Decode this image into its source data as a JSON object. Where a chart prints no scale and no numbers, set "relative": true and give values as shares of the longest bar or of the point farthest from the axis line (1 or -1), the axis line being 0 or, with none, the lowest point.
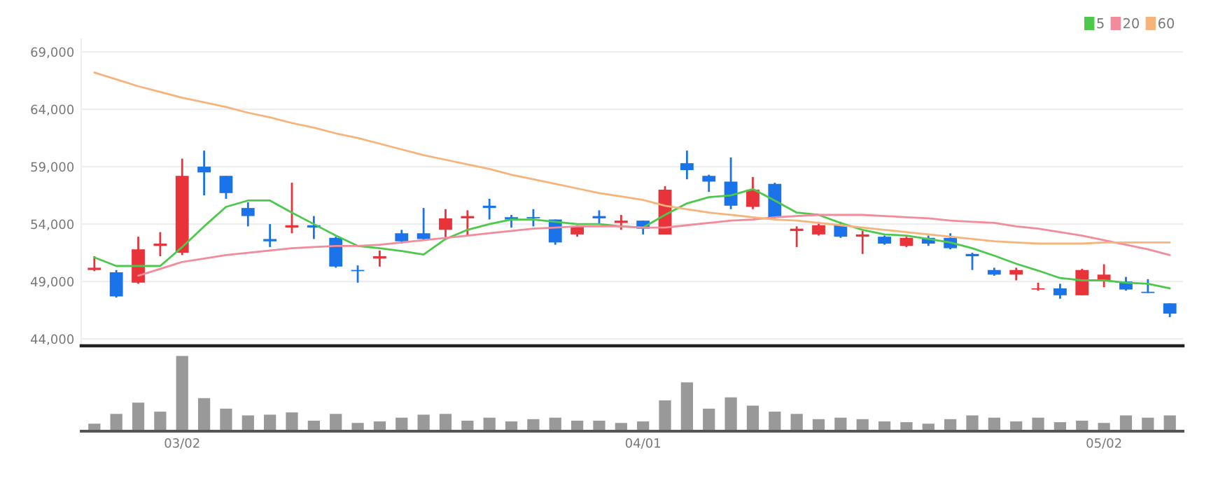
{
  "chart_data": [
    {
      "type": "candlestick",
      "categories": [
        null,
        null,
        null,
        null,
        null,
        null,
        null,
        null,
        null,
        null,
        null,
        null,
        null,
        null,
        null,
        null,
        null,
        null,
        null,
        null,
        null,
        null,
        null,
        null,
        null,
        null,
        null,
        null,
        null,
        null,
        null,
        null,
        null,
        null,
        null,
        null,
        null,
        null,
        null,
        null,
        null,
        null,
        null,
        null,
        null,
        null,
        null,
        null,
        null,
        null
      ],
      "ohlc": [
        [
          50000,
          51200,
          49900,
          50200
        ],
        [
          49800,
          50000,
          47600,
          47700
        ],
        [
          48900,
          52900,
          48800,
          51800
        ],
        [
          52100,
          53300,
          51200,
          52300
        ],
        [
          51500,
          59700,
          51300,
          58200
        ],
        [
          59000,
          60400,
          56500,
          58500
        ],
        [
          58200,
          58200,
          56200,
          56700
        ],
        [
          55400,
          55900,
          53800,
          54700
        ],
        [
          52700,
          54000,
          52000,
          52500
        ],
        [
          53700,
          57600,
          53200,
          53900
        ],
        [
          53900,
          54700,
          52700,
          53700
        ],
        [
          52800,
          52900,
          50200,
          50300
        ],
        [
          50000,
          50400,
          48900,
          49900
        ],
        [
          51000,
          51700,
          50300,
          51200
        ],
        [
          53200,
          53500,
          52300,
          52500
        ],
        [
          53200,
          55400,
          52600,
          52700
        ],
        [
          53500,
          55300,
          52800,
          54500
        ],
        [
          54500,
          55200,
          53000,
          54700
        ],
        [
          55600,
          56200,
          54400,
          55400
        ],
        [
          54600,
          54800,
          53700,
          54400
        ],
        [
          54600,
          55300,
          53800,
          54500
        ],
        [
          54400,
          54400,
          52200,
          52400
        ],
        [
          53100,
          53900,
          52900,
          53800
        ],
        [
          54700,
          55200,
          54000,
          54500
        ],
        [
          54100,
          54800,
          53500,
          54300
        ],
        [
          54300,
          54300,
          53100,
          53600
        ],
        [
          53100,
          57300,
          53100,
          57000
        ],
        [
          59300,
          60400,
          57900,
          58700
        ],
        [
          58200,
          58300,
          56800,
          57700
        ],
        [
          57700,
          59800,
          55300,
          55600
        ],
        [
          55500,
          58100,
          55300,
          57000
        ],
        [
          57500,
          57600,
          54500,
          54600
        ],
        [
          53400,
          53800,
          52000,
          53600
        ],
        [
          53100,
          54200,
          53000,
          53900
        ],
        [
          53900,
          54200,
          52800,
          52900
        ],
        [
          52900,
          53400,
          51400,
          53100
        ],
        [
          52900,
          53000,
          52200,
          52300
        ],
        [
          52100,
          52900,
          52000,
          52800
        ],
        [
          52800,
          53000,
          52100,
          52300
        ],
        [
          52800,
          53200,
          51800,
          51900
        ],
        [
          51400,
          51500,
          50000,
          51200
        ],
        [
          50000,
          50200,
          49500,
          49600
        ],
        [
          49600,
          50200,
          49100,
          50000
        ],
        [
          48300,
          48900,
          48200,
          48400
        ],
        [
          48400,
          48800,
          47500,
          47800
        ],
        [
          47800,
          50100,
          47800,
          50000
        ],
        [
          49100,
          50500,
          48500,
          49600
        ],
        [
          49000,
          49400,
          48200,
          48300
        ],
        [
          48100,
          49200,
          48000,
          48000
        ],
        [
          47100,
          47100,
          45900,
          46200
        ]
      ],
      "colors": [
        "#e8333a",
        "#1a73e8",
        "#e8333a",
        "#e8333a",
        "#e8333a",
        "#1a73e8",
        "#1a73e8",
        "#1a73e8",
        "#1a73e8",
        "#e8333a",
        "#1a73e8",
        "#1a73e8",
        "#1a73e8",
        "#e8333a",
        "#1a73e8",
        "#1a73e8",
        "#e8333a",
        "#e8333a",
        "#1a73e8",
        "#1a73e8",
        "#1a73e8",
        "#1a73e8",
        "#e8333a",
        "#1a73e8",
        "#e8333a",
        "#1a73e8",
        "#e8333a",
        "#1a73e8",
        "#1a73e8",
        "#1a73e8",
        "#e8333a",
        "#1a73e8",
        "#e8333a",
        "#e8333a",
        "#1a73e8",
        "#e8333a",
        "#1a73e8",
        "#e8333a",
        "#1a73e8",
        "#1a73e8",
        "#1a73e8",
        "#1a73e8",
        "#e8333a",
        "#e8333a",
        "#1a73e8",
        "#e8333a",
        "#e8333a",
        "#1a73e8",
        "#1a73e8",
        "#1a73e8"
      ],
      "series": [
        {
          "name": "5",
          "type": "line",
          "color": "#4cc94c",
          "values": [
            51100,
            50350,
            50350,
            50350,
            52000,
            53800,
            55500,
            56050,
            56050,
            55000,
            54000,
            53000,
            52100,
            51900,
            51650,
            51350,
            52700,
            53500,
            54000,
            54400,
            54400,
            54200,
            54000,
            54000,
            53800,
            53700,
            54800,
            55800,
            56350,
            56500,
            57050,
            56050,
            55000,
            54800,
            54100,
            53500,
            53100,
            53000,
            52700,
            52400,
            51900,
            51250,
            50550,
            49950,
            49300,
            49100,
            49100,
            48900,
            48800,
            48400
          ]
        },
        {
          "name": "20",
          "type": "line",
          "color": "#f28b9a",
          "values": [
            null,
            null,
            49500,
            50100,
            50700,
            51000,
            51300,
            51500,
            51700,
            51900,
            52000,
            52100,
            52100,
            52200,
            52400,
            52600,
            52800,
            53000,
            53200,
            53400,
            53600,
            53700,
            53800,
            53800,
            53800,
            53700,
            53700,
            53900,
            54100,
            54300,
            54400,
            54600,
            54700,
            54800,
            54800,
            54800,
            54700,
            54600,
            54500,
            54300,
            54200,
            54100,
            53800,
            53600,
            53300,
            53000,
            52600,
            52200,
            51800,
            51300
          ]
        },
        {
          "name": "60",
          "type": "line",
          "color": "#f7b47a",
          "values": [
            67200,
            66600,
            66000,
            65500,
            65000,
            64600,
            64200,
            63700,
            63300,
            62800,
            62400,
            61900,
            61500,
            61000,
            60500,
            60000,
            59600,
            59200,
            58800,
            58300,
            57900,
            57500,
            57100,
            56700,
            56400,
            56100,
            55600,
            55300,
            55000,
            54800,
            54600,
            54400,
            54300,
            54100,
            53900,
            53700,
            53500,
            53300,
            53100,
            52900,
            52700,
            52500,
            52400,
            52300,
            52300,
            52300,
            52400,
            52400,
            52400,
            52400
          ]
        }
      ],
      "ylim": [
        43400,
        70100
      ],
      "yticks": [
        {
          "value": 44000,
          "label": "44,000"
        },
        {
          "value": 49000,
          "label": "49,000"
        },
        {
          "value": 54000,
          "label": "54,000"
        },
        {
          "value": 59000,
          "label": "59,000"
        },
        {
          "value": 64000,
          "label": "64,000"
        },
        {
          "value": 69000,
          "label": "69,000"
        }
      ],
      "grid": "y",
      "legend": "top right",
      "tick_labels": "y"
    },
    {
      "type": "bar",
      "categories": [
        null,
        null,
        null,
        null,
        "03/02",
        null,
        null,
        null,
        null,
        null,
        null,
        null,
        null,
        null,
        null,
        null,
        null,
        null,
        null,
        null,
        null,
        null,
        null,
        null,
        null,
        "04/01",
        null,
        null,
        null,
        null,
        null,
        null,
        null,
        null,
        null,
        null,
        null,
        null,
        null,
        null,
        null,
        null,
        null,
        null,
        null,
        null,
        "05/02",
        null,
        null,
        null
      ],
      "values": [
        0.1,
        0.23,
        0.38,
        0.26,
        1,
        0.44,
        0.3,
        0.21,
        0.22,
        0.25,
        0.14,
        0.23,
        0.11,
        0.13,
        0.18,
        0.22,
        0.23,
        0.14,
        0.18,
        0.13,
        0.16,
        0.18,
        0.14,
        0.14,
        0.11,
        0.13,
        0.41,
        0.65,
        0.3,
        0.45,
        0.34,
        0.26,
        0.23,
        0.16,
        0.18,
        0.16,
        0.13,
        0.12,
        0.1,
        0.16,
        0.21,
        0.18,
        0.13,
        0.18,
        0.12,
        0.14,
        0.11,
        0.21,
        0.18,
        0.21
      ],
      "color": "#999999",
      "relative": true,
      "tick_labels": "x"
    }
  ]
}
